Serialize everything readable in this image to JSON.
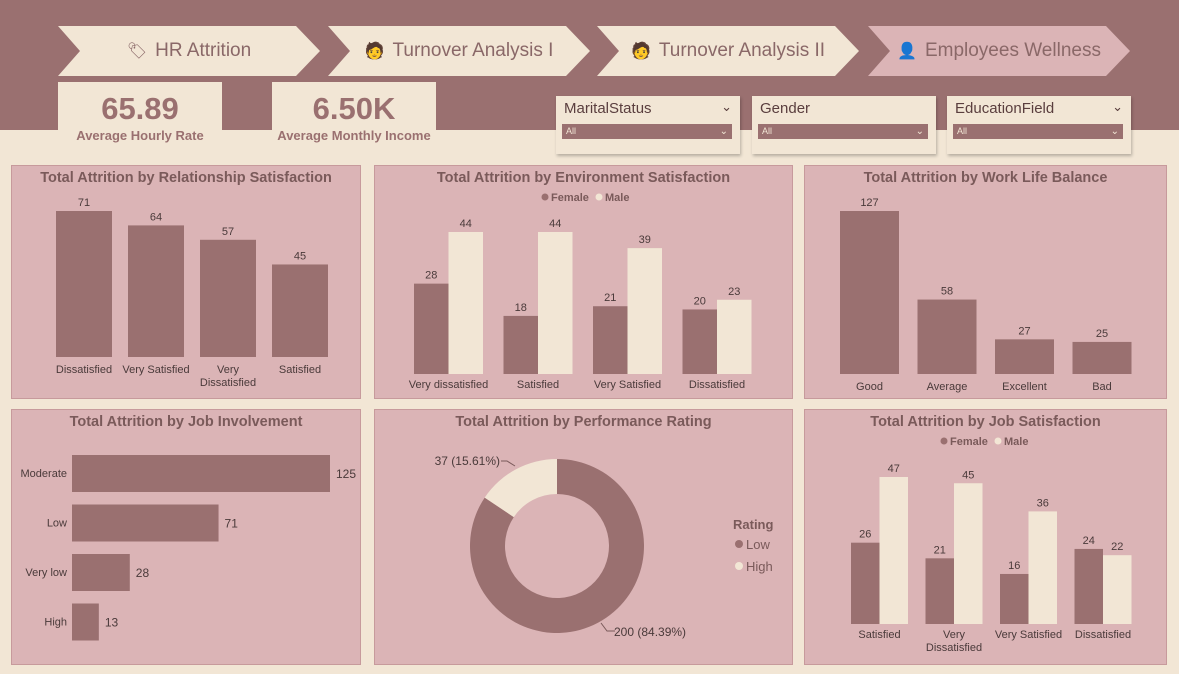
{
  "nav": {
    "tabs": [
      {
        "label": "HR Attrition",
        "icon": "tag-icon"
      },
      {
        "label": "Turnover Analysis I",
        "icon": "worker-icon"
      },
      {
        "label": "Turnover Analysis II",
        "icon": "worker-icon"
      },
      {
        "label": "Employees Wellness",
        "icon": "person-icon"
      }
    ]
  },
  "kpis": [
    {
      "value": "65.89",
      "label": "Average Hourly Rate"
    },
    {
      "value": "6.50K",
      "label": "Average Monthly Income"
    }
  ],
  "slicers": [
    {
      "title": "MaritalStatus",
      "value": "All"
    },
    {
      "title": "Gender",
      "value": "All"
    },
    {
      "title": "EducationField",
      "value": "All"
    }
  ],
  "colors": {
    "primary": "#9a7070",
    "secondary": "#f2e6d5",
    "panel": "#dbb4b6"
  },
  "chart_data": [
    {
      "id": "relationship",
      "type": "bar",
      "title": "Total Attrition by Relationship Satisfaction",
      "categories": [
        "Dissatisfied",
        "Very Satisfied",
        "Very Dissatisfied",
        "Satisfied"
      ],
      "values": [
        71,
        64,
        57,
        45
      ]
    },
    {
      "id": "environment",
      "type": "bar",
      "title": "Total Attrition by Environment Satisfaction",
      "legend": [
        "Female",
        "Male"
      ],
      "categories": [
        "Very dissatisfied",
        "Satisfied",
        "Very Satisfied",
        "Dissatisfied"
      ],
      "series": [
        {
          "name": "Female",
          "values": [
            28,
            18,
            21,
            20
          ]
        },
        {
          "name": "Male",
          "values": [
            44,
            44,
            39,
            23
          ]
        }
      ]
    },
    {
      "id": "worklife",
      "type": "bar",
      "title": "Total Attrition by Work Life Balance",
      "categories": [
        "Good",
        "Average",
        "Excellent",
        "Bad"
      ],
      "values": [
        127,
        58,
        27,
        25
      ]
    },
    {
      "id": "involvement",
      "type": "bar",
      "orientation": "horizontal",
      "title": "Total Attrition by Job Involvement",
      "categories": [
        "Moderate",
        "Low",
        "Very low",
        "High"
      ],
      "values": [
        125,
        71,
        28,
        13
      ]
    },
    {
      "id": "performance",
      "type": "pie",
      "style": "donut",
      "title": "Total Attrition by Performance Rating",
      "legend_title": "Rating",
      "categories": [
        "Low",
        "High"
      ],
      "values": [
        200,
        37
      ],
      "labels": [
        "200 (84.39%)",
        "37 (15.61%)"
      ]
    },
    {
      "id": "jobsat",
      "type": "bar",
      "title": "Total Attrition by Job Satisfaction",
      "legend": [
        "Female",
        "Male"
      ],
      "categories": [
        "Satisfied",
        "Very Dissatisfied",
        "Very Satisfied",
        "Dissatisfied"
      ],
      "series": [
        {
          "name": "Female",
          "values": [
            26,
            21,
            16,
            24
          ]
        },
        {
          "name": "Male",
          "values": [
            47,
            45,
            36,
            22
          ]
        }
      ]
    }
  ]
}
